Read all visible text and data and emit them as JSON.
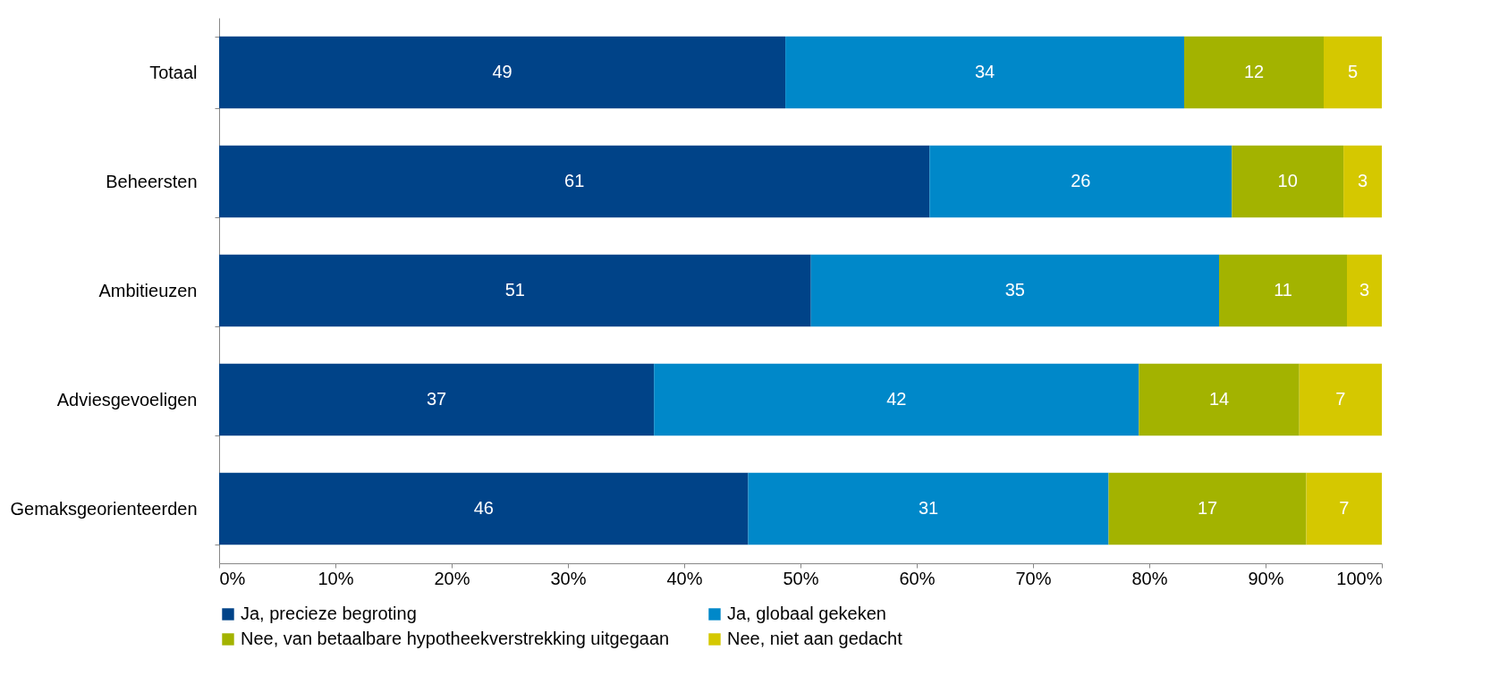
{
  "chart_data": {
    "type": "bar",
    "orientation": "horizontal",
    "stacked": true,
    "categories": [
      "Totaal",
      "Beheersten",
      "Ambitieuzen",
      "Adviesgevoeligen",
      "Gemaksgeorienteerden"
    ],
    "series": [
      {
        "name": "Ja, precieze begroting",
        "color": "#004388",
        "values": [
          48.7,
          61.1,
          50.9,
          37.4,
          45.5
        ],
        "value_labels": [
          "49",
          "61",
          "51",
          "37",
          "46"
        ]
      },
      {
        "name": "Ja, globaal gekeken",
        "color": "#0088c9",
        "values": [
          34.3,
          26,
          35.1,
          41.7,
          31
        ],
        "value_labels": [
          "34",
          "26",
          "35",
          "42",
          "31"
        ]
      },
      {
        "name": "Nee, van betaalbare hypotheekverstrekking uitgegaan",
        "color": "#a3b300",
        "values": [
          12,
          9.6,
          11,
          13.8,
          17
        ],
        "value_labels": [
          "12",
          "10",
          "11",
          "14",
          "17"
        ]
      },
      {
        "name": "Nee, niet aan gedacht",
        "color": "#d5c800",
        "values": [
          5,
          3.3,
          3,
          7.1,
          6.5
        ],
        "value_labels": [
          "5",
          "3",
          "3",
          "7",
          "7"
        ]
      }
    ],
    "xlim": [
      0,
      100
    ],
    "xticks": [
      {
        "value": 0,
        "label": "0%"
      },
      {
        "value": 10,
        "label": "10%"
      },
      {
        "value": 20,
        "label": "20%"
      },
      {
        "value": 30,
        "label": "30%"
      },
      {
        "value": 40,
        "label": "40%"
      },
      {
        "value": 50,
        "label": "50%"
      },
      {
        "value": 60,
        "label": "60%"
      },
      {
        "value": 70,
        "label": "70%"
      },
      {
        "value": 80,
        "label": "80%"
      },
      {
        "value": 90,
        "label": "90%"
      },
      {
        "value": 100,
        "label": "100%"
      }
    ],
    "grid": false,
    "legend": "bottom"
  }
}
